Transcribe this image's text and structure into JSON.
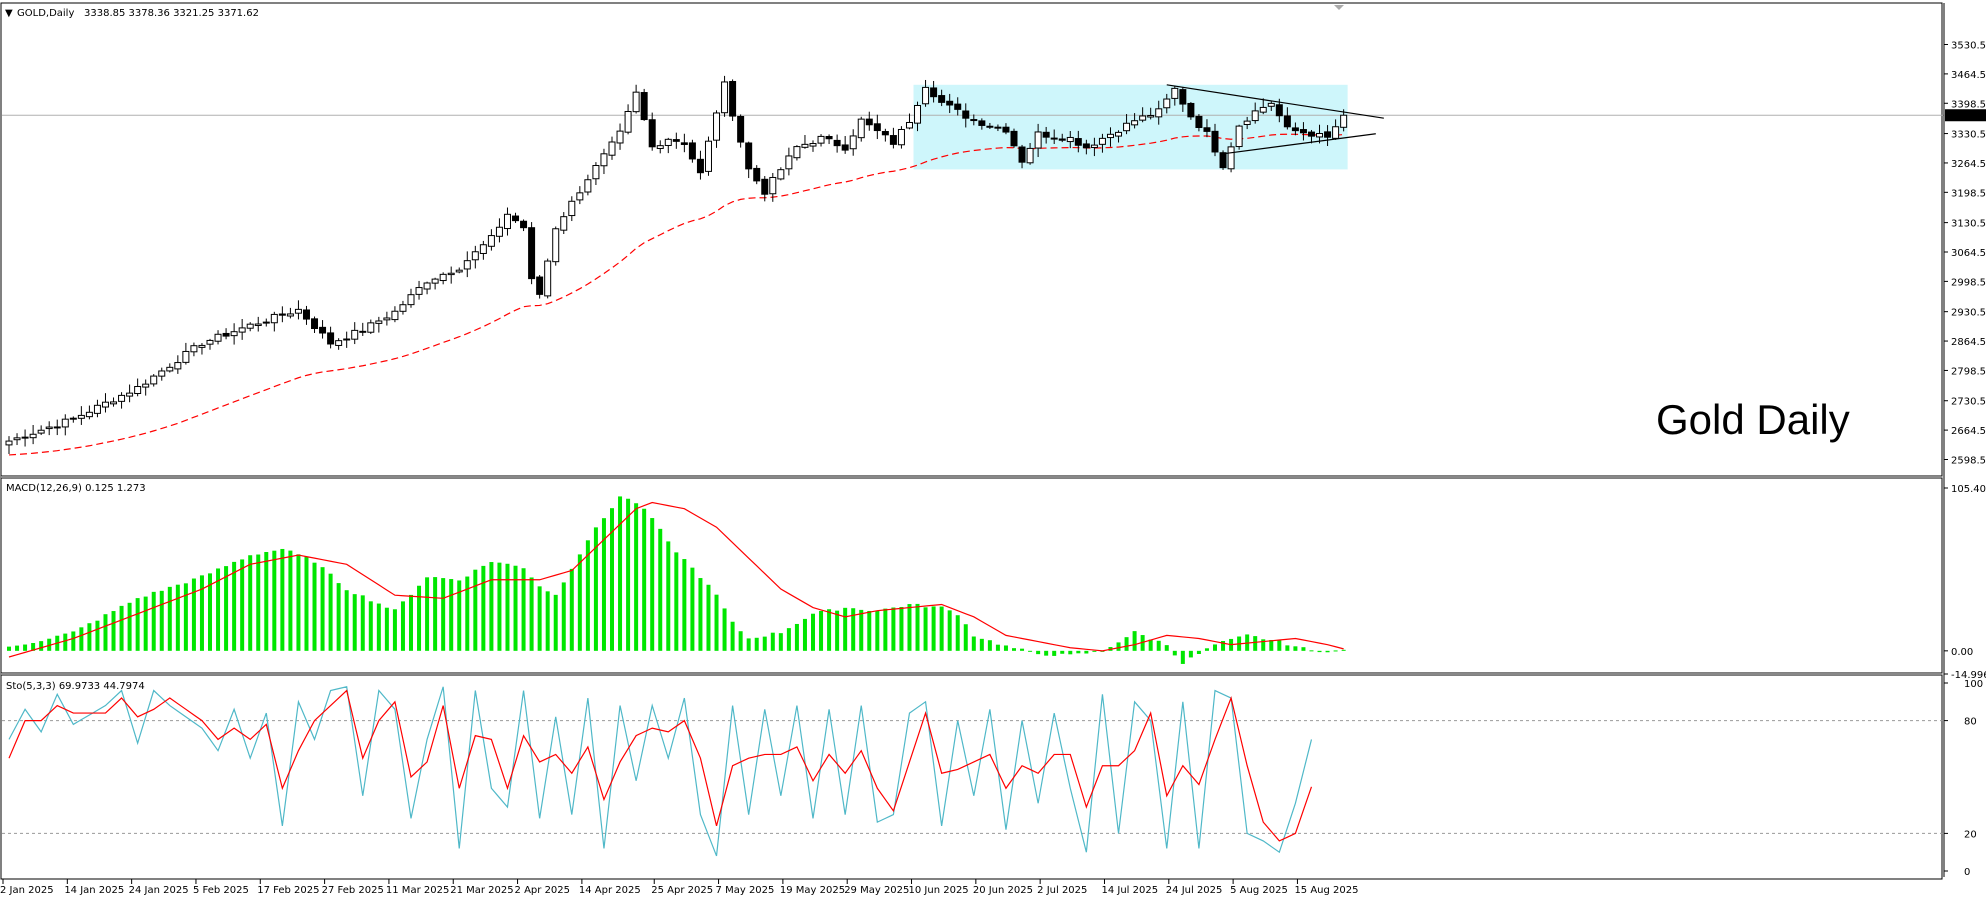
{
  "chart_data": {
    "type": "candlestick",
    "symbol_header": "GOLD,Daily",
    "ohlc_header": "3338.85 3378.36 3321.25 3371.62",
    "watermark": "Gold Daily",
    "last_price": 3371.62,
    "last_price_label": "3371.62",
    "price_axis": {
      "min": 2598.5,
      "max": 3530.5,
      "ticks": [
        "3530.50",
        "3464.50",
        "3398.50",
        "3330.50",
        "3264.50",
        "3198.50",
        "3130.50",
        "3064.50",
        "2998.50",
        "2930.50",
        "2864.50",
        "2798.50",
        "2730.50",
        "2664.50",
        "2598.50"
      ]
    },
    "date_labels": [
      {
        "label": "2 Jan 2025",
        "idx": 0
      },
      {
        "label": "14 Jan 2025",
        "idx": 8
      },
      {
        "label": "24 Jan 2025",
        "idx": 16
      },
      {
        "label": "5 Feb 2025",
        "idx": 24
      },
      {
        "label": "17 Feb 2025",
        "idx": 32
      },
      {
        "label": "27 Feb 2025",
        "idx": 40
      },
      {
        "label": "11 Mar 2025",
        "idx": 48
      },
      {
        "label": "21 Mar 2025",
        "idx": 56
      },
      {
        "label": "2 Apr 2025",
        "idx": 64
      },
      {
        "label": "14 Apr 2025",
        "idx": 72
      },
      {
        "label": "25 Apr 2025",
        "idx": 81
      },
      {
        "label": "7 May 2025",
        "idx": 89
      },
      {
        "label": "19 May 2025",
        "idx": 97
      },
      {
        "label": "29 May 2025",
        "idx": 105
      },
      {
        "label": "10 Jun 2025",
        "idx": 113
      },
      {
        "label": "20 Jun 2025",
        "idx": 121
      },
      {
        "label": "2 Jul 2025",
        "idx": 129
      },
      {
        "label": "14 Jul 2025",
        "idx": 137
      },
      {
        "label": "24 Jul 2025",
        "idx": 145
      },
      {
        "label": "5 Aug 2025",
        "idx": 153
      },
      {
        "label": "15 Aug 2025",
        "idx": 161
      }
    ],
    "close_keypoints": [
      [
        0,
        2640
      ],
      [
        8,
        2690
      ],
      [
        16,
        2760
      ],
      [
        24,
        2860
      ],
      [
        30,
        2900
      ],
      [
        36,
        2935
      ],
      [
        40,
        2860
      ],
      [
        44,
        2890
      ],
      [
        48,
        2930
      ],
      [
        52,
        3000
      ],
      [
        56,
        3030
      ],
      [
        60,
        3095
      ],
      [
        62,
        3150
      ],
      [
        64,
        3120
      ],
      [
        65,
        3000
      ],
      [
        66,
        2970
      ],
      [
        68,
        3120
      ],
      [
        72,
        3230
      ],
      [
        76,
        3330
      ],
      [
        78,
        3420
      ],
      [
        80,
        3300
      ],
      [
        82,
        3320
      ],
      [
        84,
        3310
      ],
      [
        86,
        3240
      ],
      [
        88,
        3380
      ],
      [
        89,
        3440
      ],
      [
        92,
        3250
      ],
      [
        94,
        3200
      ],
      [
        96,
        3250
      ],
      [
        98,
        3300
      ],
      [
        101,
        3320
      ],
      [
        104,
        3300
      ],
      [
        106,
        3360
      ],
      [
        110,
        3310
      ],
      [
        112,
        3360
      ],
      [
        114,
        3440
      ],
      [
        116,
        3400
      ],
      [
        118,
        3380
      ],
      [
        120,
        3360
      ],
      [
        124,
        3340
      ],
      [
        126,
        3270
      ],
      [
        128,
        3330
      ],
      [
        132,
        3320
      ],
      [
        134,
        3300
      ],
      [
        138,
        3340
      ],
      [
        140,
        3360
      ],
      [
        143,
        3380
      ],
      [
        145,
        3430
      ],
      [
        147,
        3370
      ],
      [
        149,
        3330
      ],
      [
        151,
        3260
      ],
      [
        153,
        3350
      ],
      [
        155,
        3380
      ],
      [
        157,
        3400
      ],
      [
        159,
        3340
      ],
      [
        162,
        3330
      ],
      [
        164,
        3320
      ],
      [
        166,
        3371.62
      ]
    ],
    "ma_line": {
      "style": "dashed",
      "color": "#ff0000"
    },
    "highlight_box": {
      "from_idx": 113,
      "to_idx": 166,
      "price_low": 3250,
      "price_high": 3440,
      "color": "#cef6fb"
    },
    "triangle": {
      "upper": {
        "from_idx": 144,
        "from_price": 3440,
        "to_idx": 171,
        "to_price": 3365
      },
      "lower": {
        "from_idx": 151,
        "from_price": 3285,
        "to_idx": 170,
        "to_price": 3330
      }
    },
    "macd": {
      "header": "MACD(12,26,9) 0.125 1.273",
      "axis_top": "105.407",
      "axis_zero": "0.00",
      "axis_bottom": "-14.996",
      "max": 105.407,
      "min": -14.996,
      "hist_color": "#00e600",
      "signal_color": "#ff0000",
      "hist_keypoints": [
        [
          0,
          2
        ],
        [
          8,
          12
        ],
        [
          16,
          34
        ],
        [
          24,
          48
        ],
        [
          30,
          62
        ],
        [
          34,
          66
        ],
        [
          38,
          58
        ],
        [
          42,
          40
        ],
        [
          48,
          26
        ],
        [
          52,
          48
        ],
        [
          56,
          46
        ],
        [
          60,
          58
        ],
        [
          64,
          54
        ],
        [
          66,
          42
        ],
        [
          68,
          36
        ],
        [
          72,
          72
        ],
        [
          76,
          100
        ],
        [
          78,
          96
        ],
        [
          80,
          86
        ],
        [
          82,
          70
        ],
        [
          86,
          48
        ],
        [
          88,
          36
        ],
        [
          90,
          18
        ],
        [
          92,
          8
        ],
        [
          96,
          12
        ],
        [
          100,
          24
        ],
        [
          104,
          28
        ],
        [
          108,
          26
        ],
        [
          112,
          30
        ],
        [
          116,
          28
        ],
        [
          118,
          24
        ],
        [
          120,
          10
        ],
        [
          124,
          3
        ],
        [
          128,
          -2
        ],
        [
          132,
          -3
        ],
        [
          136,
          0
        ],
        [
          140,
          12
        ],
        [
          144,
          4
        ],
        [
          146,
          -8
        ],
        [
          150,
          4
        ],
        [
          154,
          10
        ],
        [
          158,
          6
        ],
        [
          162,
          0
        ],
        [
          166,
          0.125
        ]
      ],
      "signal_keypoints": [
        [
          0,
          -4
        ],
        [
          8,
          8
        ],
        [
          16,
          24
        ],
        [
          24,
          40
        ],
        [
          30,
          56
        ],
        [
          36,
          62
        ],
        [
          42,
          56
        ],
        [
          48,
          36
        ],
        [
          54,
          34
        ],
        [
          60,
          46
        ],
        [
          66,
          46
        ],
        [
          70,
          52
        ],
        [
          74,
          72
        ],
        [
          78,
          92
        ],
        [
          80,
          96
        ],
        [
          84,
          92
        ],
        [
          88,
          80
        ],
        [
          92,
          60
        ],
        [
          96,
          40
        ],
        [
          100,
          28
        ],
        [
          104,
          22
        ],
        [
          108,
          26
        ],
        [
          112,
          28
        ],
        [
          116,
          30
        ],
        [
          120,
          22
        ],
        [
          124,
          10
        ],
        [
          128,
          6
        ],
        [
          132,
          2
        ],
        [
          136,
          0
        ],
        [
          140,
          4
        ],
        [
          144,
          10
        ],
        [
          148,
          8
        ],
        [
          152,
          4
        ],
        [
          156,
          6
        ],
        [
          160,
          8
        ],
        [
          164,
          4
        ],
        [
          166,
          1.273
        ]
      ]
    },
    "stochastic": {
      "header": "Sto(5,3,3) 69.9733 44.7974",
      "axis_ticks": [
        "100",
        "80",
        "20",
        "0"
      ],
      "levels": [
        80,
        20
      ],
      "main_color": "#4fb8c8",
      "signal_color": "#ff0000",
      "k_keypoints": [
        [
          0,
          70
        ],
        [
          2,
          86
        ],
        [
          4,
          74
        ],
        [
          6,
          94
        ],
        [
          8,
          78
        ],
        [
          12,
          88
        ],
        [
          14,
          96
        ],
        [
          16,
          68
        ],
        [
          18,
          96
        ],
        [
          20,
          88
        ],
        [
          24,
          76
        ],
        [
          26,
          64
        ],
        [
          28,
          86
        ],
        [
          30,
          60
        ],
        [
          32,
          84
        ],
        [
          34,
          24
        ],
        [
          36,
          90
        ],
        [
          38,
          70
        ],
        [
          40,
          96
        ],
        [
          42,
          98
        ],
        [
          44,
          40
        ],
        [
          46,
          96
        ],
        [
          48,
          86
        ],
        [
          50,
          28
        ],
        [
          52,
          70
        ],
        [
          54,
          98
        ],
        [
          56,
          12
        ],
        [
          58,
          96
        ],
        [
          60,
          44
        ],
        [
          62,
          34
        ],
        [
          64,
          96
        ],
        [
          66,
          28
        ],
        [
          68,
          82
        ],
        [
          70,
          30
        ],
        [
          72,
          92
        ],
        [
          74,
          12
        ],
        [
          76,
          88
        ],
        [
          78,
          48
        ],
        [
          80,
          88
        ],
        [
          82,
          60
        ],
        [
          84,
          92
        ],
        [
          86,
          30
        ],
        [
          88,
          8
        ],
        [
          90,
          88
        ],
        [
          92,
          30
        ],
        [
          94,
          86
        ],
        [
          96,
          40
        ],
        [
          98,
          88
        ],
        [
          100,
          28
        ],
        [
          102,
          86
        ],
        [
          104,
          30
        ],
        [
          106,
          88
        ],
        [
          108,
          26
        ],
        [
          110,
          30
        ],
        [
          112,
          84
        ],
        [
          114,
          90
        ],
        [
          116,
          24
        ],
        [
          118,
          80
        ],
        [
          120,
          40
        ],
        [
          122,
          86
        ],
        [
          124,
          22
        ],
        [
          126,
          80
        ],
        [
          128,
          36
        ],
        [
          130,
          84
        ],
        [
          132,
          44
        ],
        [
          134,
          10
        ],
        [
          136,
          94
        ],
        [
          138,
          20
        ],
        [
          140,
          90
        ],
        [
          142,
          80
        ],
        [
          144,
          12
        ],
        [
          146,
          90
        ],
        [
          148,
          12
        ],
        [
          150,
          96
        ],
        [
          152,
          92
        ],
        [
          154,
          20
        ],
        [
          156,
          16
        ],
        [
          158,
          10
        ],
        [
          160,
          36
        ],
        [
          162,
          69.9733
        ]
      ],
      "d_keypoints": [
        [
          0,
          60
        ],
        [
          2,
          80
        ],
        [
          4,
          80
        ],
        [
          6,
          88
        ],
        [
          8,
          84
        ],
        [
          12,
          84
        ],
        [
          14,
          92
        ],
        [
          16,
          82
        ],
        [
          18,
          86
        ],
        [
          20,
          92
        ],
        [
          24,
          80
        ],
        [
          26,
          70
        ],
        [
          28,
          76
        ],
        [
          30,
          70
        ],
        [
          32,
          78
        ],
        [
          34,
          44
        ],
        [
          36,
          64
        ],
        [
          38,
          80
        ],
        [
          40,
          88
        ],
        [
          42,
          96
        ],
        [
          44,
          60
        ],
        [
          46,
          80
        ],
        [
          48,
          90
        ],
        [
          50,
          50
        ],
        [
          52,
          58
        ],
        [
          54,
          88
        ],
        [
          56,
          44
        ],
        [
          58,
          72
        ],
        [
          60,
          70
        ],
        [
          62,
          44
        ],
        [
          64,
          72
        ],
        [
          66,
          58
        ],
        [
          68,
          62
        ],
        [
          70,
          52
        ],
        [
          72,
          66
        ],
        [
          74,
          38
        ],
        [
          76,
          58
        ],
        [
          78,
          72
        ],
        [
          80,
          76
        ],
        [
          82,
          74
        ],
        [
          84,
          80
        ],
        [
          86,
          60
        ],
        [
          88,
          24
        ],
        [
          90,
          56
        ],
        [
          92,
          60
        ],
        [
          94,
          62
        ],
        [
          96,
          62
        ],
        [
          98,
          66
        ],
        [
          100,
          48
        ],
        [
          102,
          62
        ],
        [
          104,
          52
        ],
        [
          106,
          64
        ],
        [
          108,
          44
        ],
        [
          110,
          32
        ],
        [
          112,
          58
        ],
        [
          114,
          84
        ],
        [
          116,
          52
        ],
        [
          118,
          54
        ],
        [
          120,
          58
        ],
        [
          122,
          62
        ],
        [
          124,
          44
        ],
        [
          126,
          56
        ],
        [
          128,
          52
        ],
        [
          130,
          62
        ],
        [
          132,
          62
        ],
        [
          134,
          34
        ],
        [
          136,
          56
        ],
        [
          138,
          56
        ],
        [
          140,
          64
        ],
        [
          142,
          84
        ],
        [
          144,
          40
        ],
        [
          146,
          56
        ],
        [
          148,
          46
        ],
        [
          150,
          70
        ],
        [
          152,
          92
        ],
        [
          154,
          56
        ],
        [
          156,
          26
        ],
        [
          158,
          16
        ],
        [
          160,
          20
        ],
        [
          162,
          44.7974
        ]
      ]
    }
  }
}
